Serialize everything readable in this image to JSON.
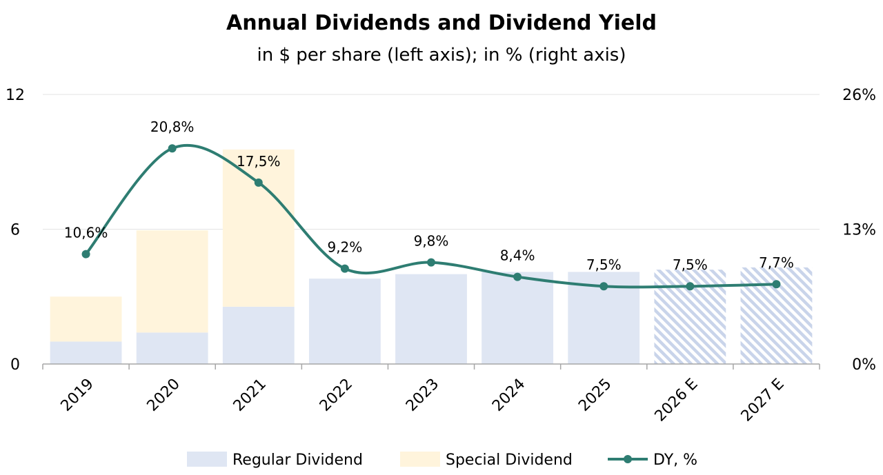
{
  "chart_data": {
    "type": "bar",
    "title": "Annual Dividends and Dividend Yield",
    "subtitle": "in $ per share (left axis); in % (right axis)",
    "categories": [
      "2019",
      "2020",
      "2021",
      "2022",
      "2023",
      "2024",
      "2025",
      "2026 E",
      "2027 E"
    ],
    "stacked": true,
    "estimate_categories": [
      "2026 E",
      "2027 E"
    ],
    "series": [
      {
        "name": "Regular Dividend",
        "type": "bar",
        "axis": "left",
        "color": "#dfe6f3",
        "values": [
          1.0,
          1.4,
          2.55,
          3.8,
          4.0,
          4.1,
          4.1,
          4.2,
          4.3
        ]
      },
      {
        "name": "Special Dividend",
        "type": "bar",
        "axis": "left",
        "color": "#fff4dc",
        "values": [
          2.0,
          4.55,
          7.0,
          0,
          0,
          0,
          0,
          0,
          0
        ]
      },
      {
        "name": "DY, %",
        "type": "line",
        "axis": "right",
        "color": "#2e7d72",
        "values": [
          10.6,
          20.8,
          17.5,
          9.2,
          9.8,
          8.4,
          7.5,
          7.5,
          7.7
        ],
        "labels": [
          "10,6%",
          "20,8%",
          "17,5%",
          "9,2%",
          "9,8%",
          "8,4%",
          "7,5%",
          "7,5%",
          "7,7%"
        ]
      }
    ],
    "y_left": {
      "min": 0,
      "max": 12,
      "ticks": [
        0,
        6,
        12
      ],
      "tick_labels": [
        "0",
        "6",
        "12"
      ]
    },
    "y_right": {
      "min": 0,
      "max": 26,
      "ticks": [
        0,
        13,
        26
      ],
      "tick_labels": [
        "0%",
        "13%",
        "26%"
      ]
    },
    "grid": true,
    "smooth_line": true,
    "legend_position": "bottom",
    "colors": {
      "axis": "#a6a6a6",
      "grid": "#e3e3e3",
      "hatch": "#c9d4ea"
    }
  }
}
